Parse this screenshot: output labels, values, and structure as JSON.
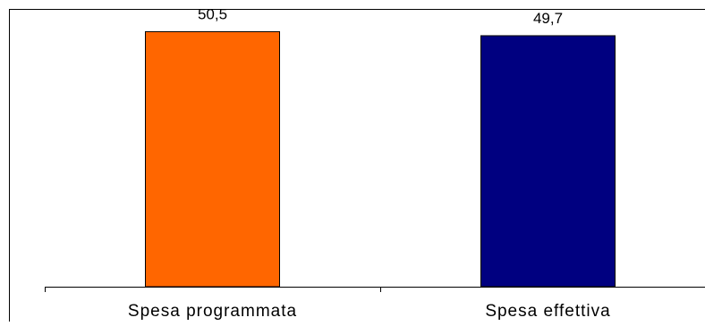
{
  "chart_data": {
    "type": "bar",
    "categories": [
      "Spesa programmata",
      "Spesa effettiva"
    ],
    "values": [
      50.5,
      49.7
    ],
    "value_labels": [
      "50,5",
      "49,7"
    ],
    "colors": [
      "#FF6600",
      "#000080"
    ],
    "title": "",
    "xlabel": "",
    "ylabel": "",
    "ylim": [
      0,
      55
    ],
    "grid": false,
    "legend": "none",
    "y_axis_visible": false
  }
}
